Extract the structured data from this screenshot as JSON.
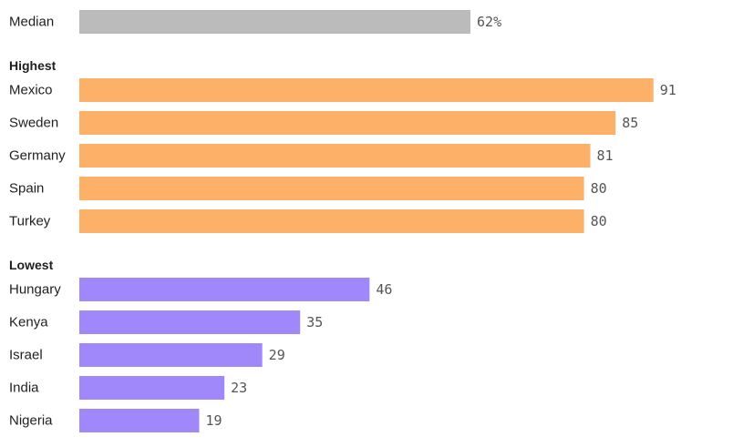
{
  "chart_data": {
    "type": "bar",
    "orientation": "horizontal",
    "xlim": [
      0,
      100
    ],
    "colors": {
      "median": "#bbbbbb",
      "highest": "#fdb168",
      "lowest": "#a087fa"
    },
    "median": {
      "label": "Median",
      "value": 62,
      "display": "62%"
    },
    "groups": [
      {
        "key": "highest",
        "title": "Highest",
        "items": [
          {
            "label": "Mexico",
            "value": 91,
            "display": "91"
          },
          {
            "label": "Sweden",
            "value": 85,
            "display": "85"
          },
          {
            "label": "Germany",
            "value": 81,
            "display": "81"
          },
          {
            "label": "Spain",
            "value": 80,
            "display": "80"
          },
          {
            "label": "Turkey",
            "value": 80,
            "display": "80"
          }
        ]
      },
      {
        "key": "lowest",
        "title": "Lowest",
        "items": [
          {
            "label": "Hungary",
            "value": 46,
            "display": "46"
          },
          {
            "label": "Kenya",
            "value": 35,
            "display": "35"
          },
          {
            "label": "Israel",
            "value": 29,
            "display": "29"
          },
          {
            "label": "India",
            "value": 23,
            "display": "23"
          },
          {
            "label": "Nigeria",
            "value": 19,
            "display": "19"
          }
        ]
      }
    ]
  }
}
